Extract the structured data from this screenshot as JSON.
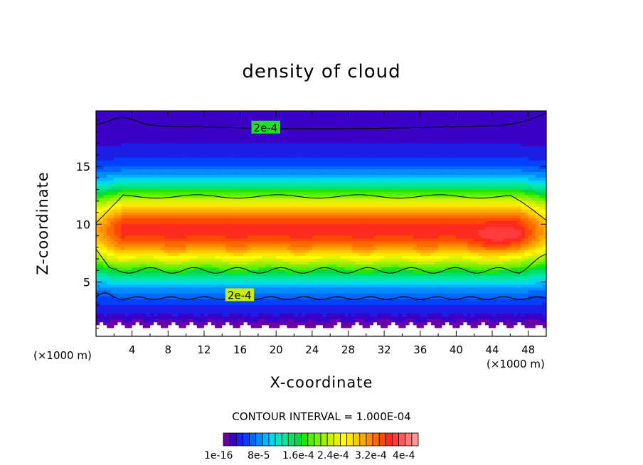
{
  "chart_data": {
    "type": "heatmap",
    "title": "density of cloud",
    "xlabel": "X-coordinate",
    "ylabel": "Z-coordinate",
    "x_unit_left": "(×1000 m)",
    "x_unit_right": "(×1000 m)",
    "xlim": [
      0,
      50
    ],
    "ylim": [
      0.3,
      19.8
    ],
    "xticks": [
      4,
      8,
      12,
      16,
      20,
      24,
      28,
      32,
      36,
      40,
      44,
      48
    ],
    "yticks": [
      5,
      10,
      15
    ],
    "contour_interval_text": "CONTOUR INTERVAL = 1.000E-04",
    "contour_labels": [
      "2e-4",
      "2e-4"
    ],
    "colorbar": {
      "colors": [
        "#6a00a8",
        "#3b00c8",
        "#1e1ee6",
        "#0040ff",
        "#0066ff",
        "#008cff",
        "#00b4ff",
        "#00d8f0",
        "#00e6c0",
        "#00e69a",
        "#00e070",
        "#00d84a",
        "#1ee600",
        "#4cf000",
        "#78f000",
        "#a0f000",
        "#c8f000",
        "#e6f000",
        "#ffff00",
        "#ffe600",
        "#ffc800",
        "#ffaa00",
        "#ff8c00",
        "#ff6a00",
        "#ff4a00",
        "#ff2a1e",
        "#ff3c3c",
        "#ff5a5a",
        "#ff7a7a",
        "#ff9696"
      ],
      "labels": [
        "1e-16",
        "8e-5",
        "1.6e-4",
        "2.4e-4",
        "3.2e-4",
        "4e-4"
      ]
    },
    "field_summary": {
      "max_value": 0.0004,
      "core_band_z": [
        7,
        12
      ],
      "peak_near": {
        "x": 45,
        "z": 8.5
      }
    }
  }
}
